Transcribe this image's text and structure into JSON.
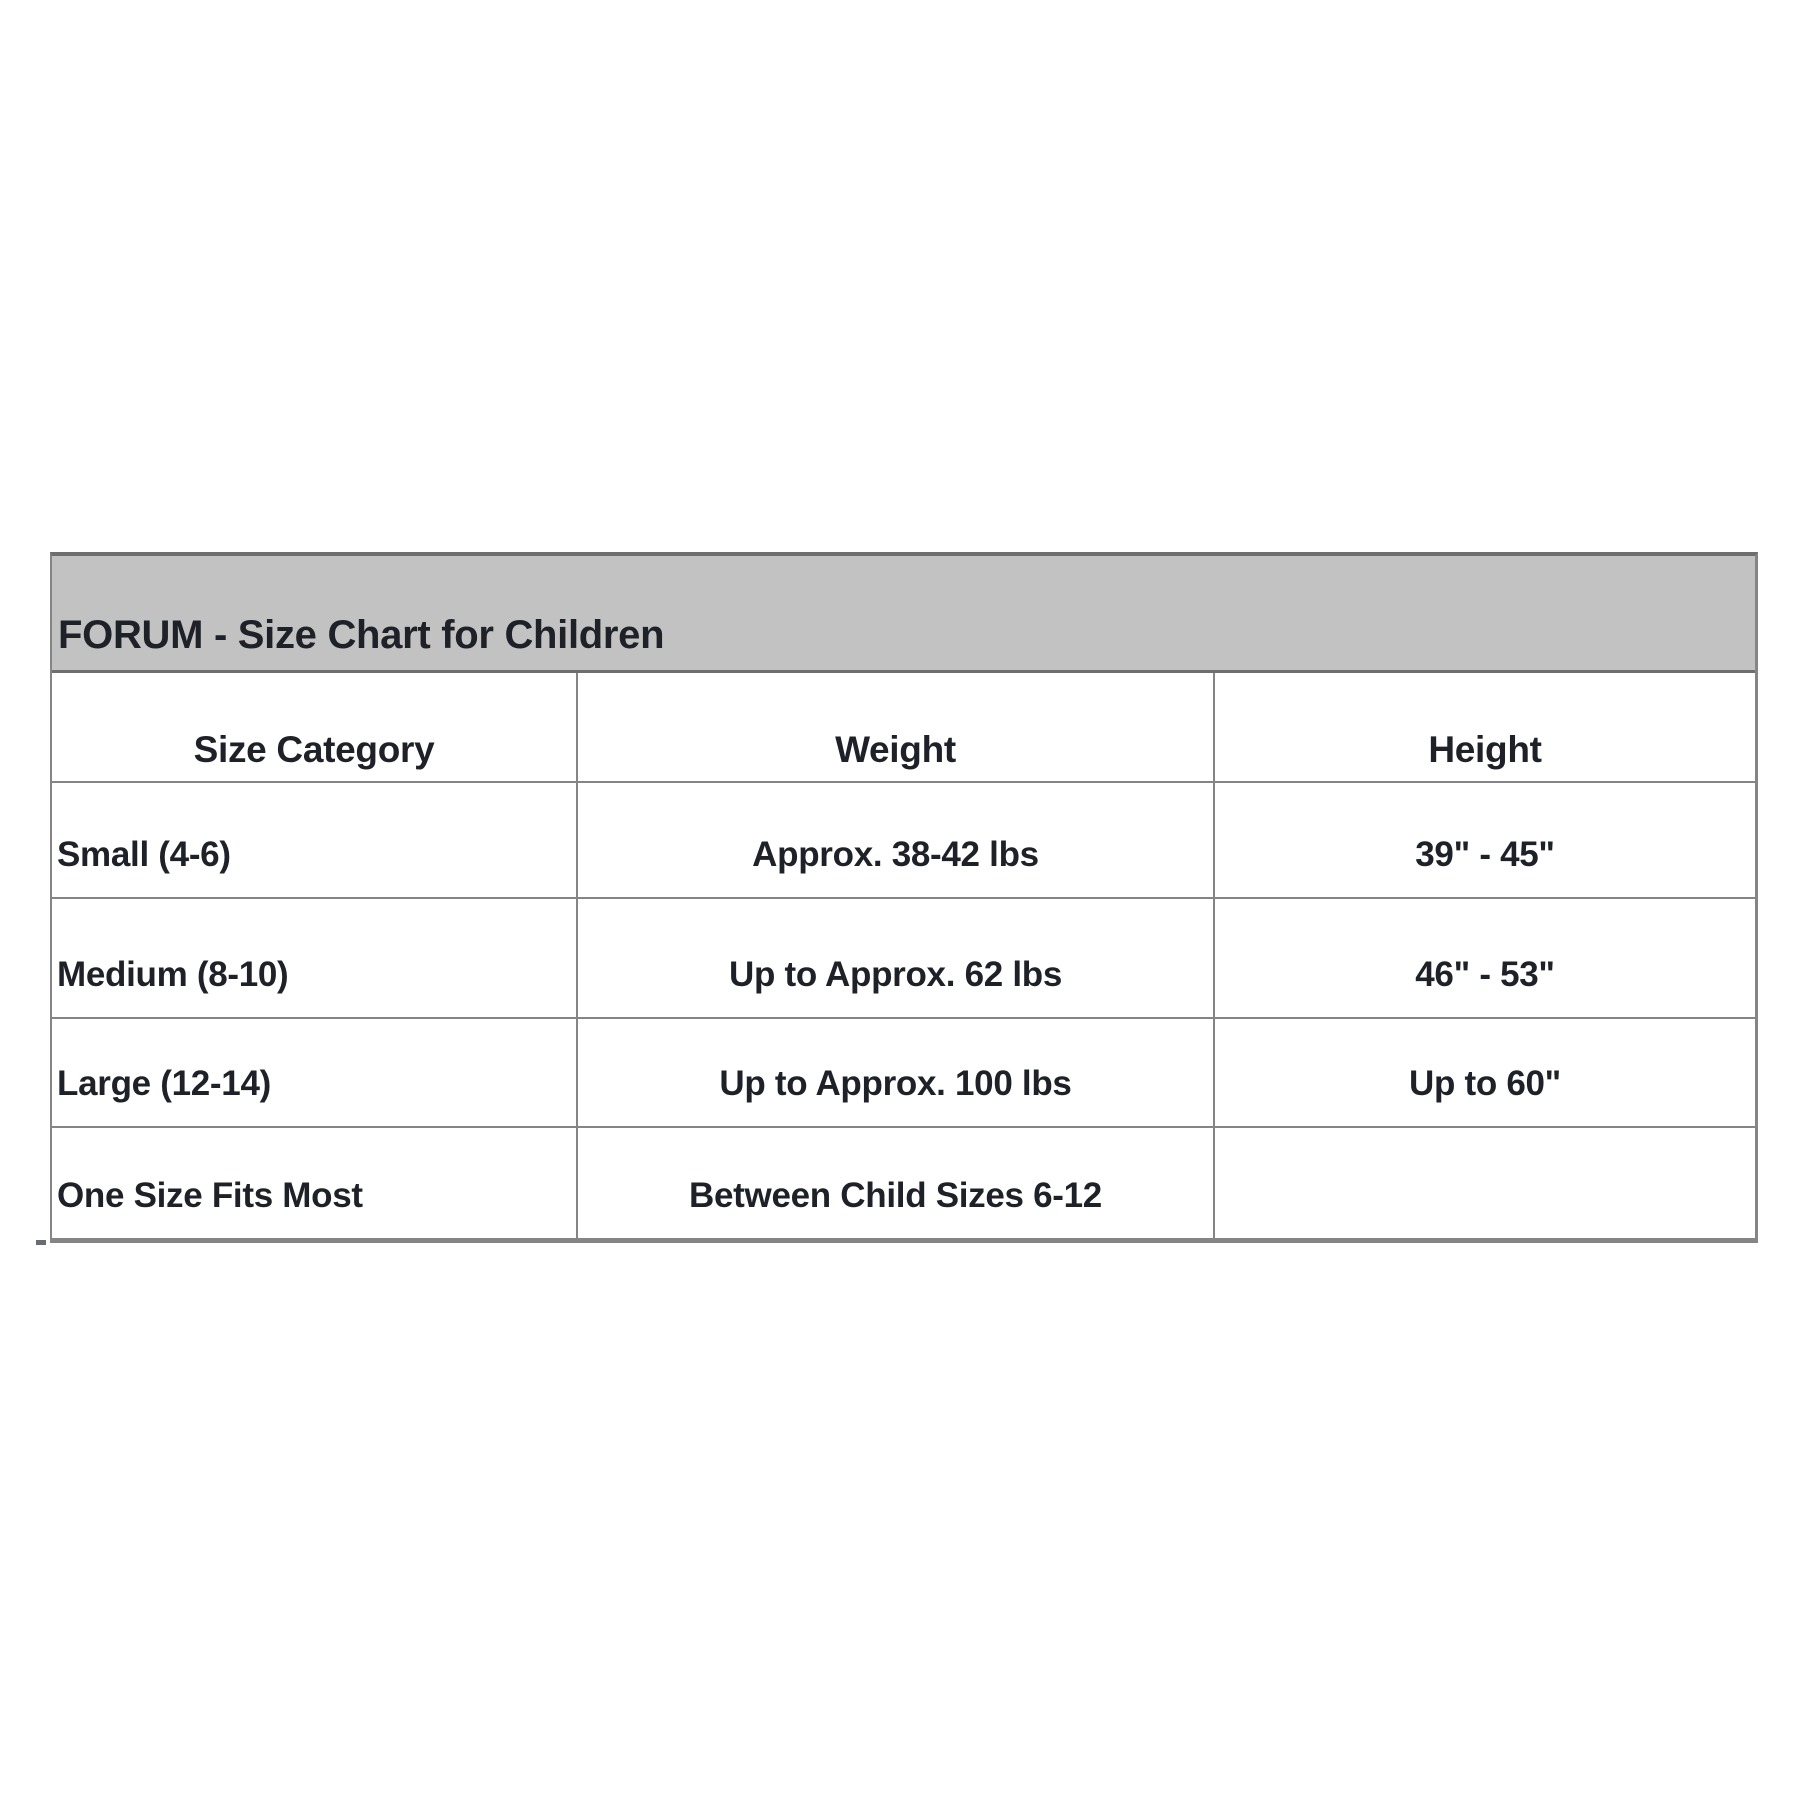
{
  "table": {
    "title": "FORUM - Size Chart for Children",
    "headers": [
      "Size Category",
      "Weight",
      "Height"
    ],
    "rows": [
      {
        "size_category": "Small (4-6)",
        "weight": "Approx. 38-42 lbs",
        "height": "39\" - 45\""
      },
      {
        "size_category": "Medium (8-10)",
        "weight": "Up to Approx. 62 lbs",
        "height": "46\" - 53\""
      },
      {
        "size_category": "Large (12-14)",
        "weight": "Up to Approx. 100 lbs",
        "height": "Up to 60\""
      },
      {
        "size_category": "One Size Fits Most",
        "weight": "Between Child Sizes 6-12",
        "height": ""
      }
    ]
  },
  "colors": {
    "page_bg": "#ffffff",
    "titlebar_bg": "#c3c2c2",
    "border": "#858585",
    "border_dark": "#6e6e6e",
    "text": "#1e2128"
  },
  "chart_data": {
    "type": "table",
    "title": "FORUM - Size Chart for Children",
    "columns": [
      "Size Category",
      "Weight",
      "Height"
    ],
    "rows": [
      [
        "Small (4-6)",
        "Approx. 38-42 lbs",
        "39\" - 45\""
      ],
      [
        "Medium (8-10)",
        "Up to Approx. 62 lbs",
        "46\" - 53\""
      ],
      [
        "Large (12-14)",
        "Up to Approx. 100 lbs",
        "Up to 60\""
      ],
      [
        "One Size Fits Most",
        "Between Child Sizes 6-12",
        ""
      ]
    ]
  }
}
